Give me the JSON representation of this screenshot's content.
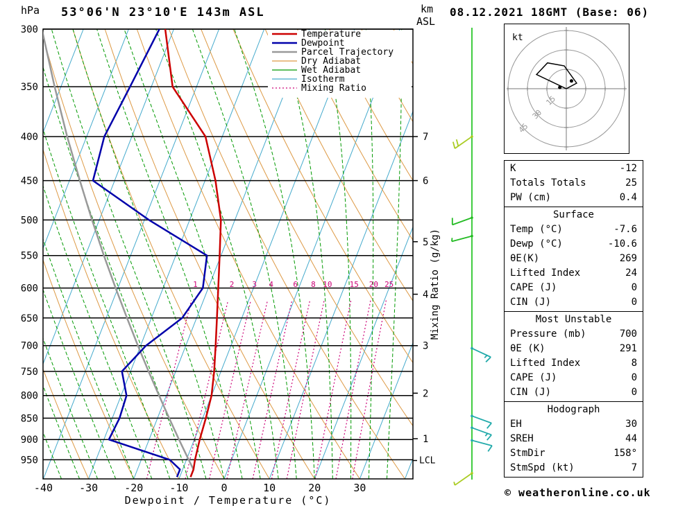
{
  "header": {
    "station_title": "53°06'N 23°10'E 143m ASL",
    "datetime_title": "08.12.2021 18GMT (Base: 06)",
    "pressure_unit": "hPa",
    "altitude_unit_top": "km",
    "altitude_unit_bottom": "ASL",
    "copyright": "© weatheronline.co.uk"
  },
  "colors": {
    "temperature": "#cc0000",
    "dewpoint": "#0000aa",
    "parcel": "#999999",
    "dry_adiabat": "#dd9944",
    "wet_adiabat": "#009900",
    "isotherm": "#44aacc",
    "mixing_ratio": "#cc0077",
    "barb_line": "#00bb00",
    "grid": "#000000"
  },
  "axes": {
    "pressure_ticks": [
      300,
      350,
      400,
      450,
      500,
      550,
      600,
      650,
      700,
      750,
      800,
      850,
      900,
      950
    ],
    "temp_ticks": [
      -40,
      -30,
      -20,
      -10,
      0,
      10,
      20,
      30
    ],
    "xlabel": "Dewpoint / Temperature (°C)",
    "right_axis_label": "Mixing Ratio (g/kg)",
    "km_ticks": [
      {
        "km": 7,
        "p": 400
      },
      {
        "km": 6,
        "p": 450
      },
      {
        "km": 5,
        "p": 530
      },
      {
        "km": 4,
        "p": 610
      },
      {
        "km": 3,
        "p": 700
      },
      {
        "km": 2,
        "p": 795
      },
      {
        "km": 1,
        "p": 898
      }
    ],
    "lcl": {
      "label": "LCL",
      "p": 952
    }
  },
  "legend": [
    {
      "label": "Temperature",
      "color": "#cc0000",
      "width": 2.5
    },
    {
      "label": "Dewpoint",
      "color": "#0000aa",
      "width": 2.5
    },
    {
      "label": "Parcel Trajectory",
      "color": "#999999",
      "width": 2.5
    },
    {
      "label": "Dry Adiabat",
      "color": "#dd9944",
      "width": 1.2
    },
    {
      "label": "Wet Adiabat",
      "color": "#009900",
      "width": 1.2
    },
    {
      "label": "Isotherm",
      "color": "#44aacc",
      "width": 1.2
    },
    {
      "label": "Mixing Ratio",
      "color": "#cc0077",
      "width": 1.2,
      "dash": "2 3"
    }
  ],
  "chart_data": {
    "type": "skewt-log-p",
    "pressure_range_hpa": [
      300,
      1000
    ],
    "temp_axis_range_c": [
      -40,
      40
    ],
    "pressure_levels": [
      995,
      975,
      950,
      900,
      850,
      800,
      750,
      700,
      650,
      600,
      550,
      500,
      450,
      400,
      350,
      300
    ],
    "temperature_profile_c": [
      -7.6,
      -7.6,
      -8.1,
      -8.8,
      -9.3,
      -10,
      -11.5,
      -13.4,
      -15.5,
      -17.8,
      -20.3,
      -23.1,
      -27.7,
      -33.7,
      -45.3,
      -51.9
    ],
    "dewpoint_profile_c": [
      -10.6,
      -10.6,
      -13.7,
      -28.9,
      -28.4,
      -28.8,
      -31.9,
      -28.8,
      -23.2,
      -21.2,
      -23.1,
      -39,
      -54.8,
      -56.1,
      -54.7,
      -53.2
    ],
    "parcel_profile_c": [
      -7.6,
      -7.6,
      -9.5,
      -13.4,
      -17.4,
      -21.6,
      -26,
      -30.6,
      -35.4,
      -40.5,
      -45.9,
      -51.6,
      -57.7,
      -64.3,
      -71.4,
      -79.2
    ],
    "mixing_ratio_g_kg": [
      1,
      2,
      3,
      4,
      6,
      8,
      10,
      15,
      20,
      25
    ],
    "dry_adiabats_c": [
      -40,
      -30,
      -20,
      -10,
      0,
      10,
      20,
      30,
      40,
      50,
      60,
      70,
      80,
      90,
      100,
      110,
      120,
      130
    ],
    "wet_adiabats_start_c": [
      -64,
      -60,
      -56,
      -52,
      -48,
      -44,
      -40,
      -36,
      -32,
      -28,
      -24,
      -20,
      -16,
      -12,
      -8,
      -4,
      0,
      4,
      8,
      12,
      16,
      20,
      24,
      28,
      32,
      36
    ]
  },
  "wind_barbs": [
    {
      "p": 400,
      "color": "#aacc22",
      "dir": 235,
      "ticks": [
        1,
        1
      ]
    },
    {
      "p": 497,
      "color": "#22bb22",
      "dir": 250,
      "ticks": [
        1
      ]
    },
    {
      "p": 522,
      "color": "#22bb22",
      "dir": 255,
      "ticks": [
        0.5
      ]
    },
    {
      "p": 705,
      "color": "#22aaaa",
      "dir": 115,
      "ticks": [
        1,
        0.5
      ]
    },
    {
      "p": 845,
      "color": "#22aaaa",
      "dir": 110,
      "ticks": [
        1
      ]
    },
    {
      "p": 872,
      "color": "#22aaaa",
      "dir": 110,
      "ticks": [
        1,
        0.5
      ]
    },
    {
      "p": 902,
      "color": "#22aaaa",
      "dir": 105,
      "ticks": [
        1
      ]
    },
    {
      "p": 985,
      "color": "#aacc22",
      "dir": 235,
      "ticks": [
        0.5
      ]
    }
  ],
  "hodograph": {
    "unit_label": "kt",
    "rings": [
      15,
      30,
      45
    ],
    "trace_kt": [
      [
        0,
        0
      ],
      [
        -23,
        11
      ],
      [
        -14.5,
        20
      ],
      [
        -1.6,
        17.7
      ],
      [
        8,
        4.3
      ],
      [
        0,
        0
      ]
    ],
    "dots_kt": [
      [
        -5,
        1
      ],
      [
        4,
        6
      ]
    ]
  },
  "panels": [
    {
      "title": null,
      "rows": [
        [
          "K",
          "-12"
        ],
        [
          "Totals Totals",
          "25"
        ],
        [
          "PW (cm)",
          "0.4"
        ]
      ]
    },
    {
      "title": "Surface",
      "rows": [
        [
          "Temp (°C)",
          "-7.6"
        ],
        [
          "Dewp (°C)",
          "-10.6"
        ],
        [
          "θE(K)",
          "269"
        ],
        [
          "Lifted Index",
          "24"
        ],
        [
          "CAPE (J)",
          "0"
        ],
        [
          "CIN (J)",
          "0"
        ]
      ]
    },
    {
      "title": "Most Unstable",
      "rows": [
        [
          "Pressure (mb)",
          "700"
        ],
        [
          "θE (K)",
          "291"
        ],
        [
          "Lifted Index",
          "8"
        ],
        [
          "CAPE (J)",
          "0"
        ],
        [
          "CIN (J)",
          "0"
        ]
      ]
    },
    {
      "title": "Hodograph",
      "rows": [
        [
          "EH",
          "30"
        ],
        [
          "SREH",
          "44"
        ],
        [
          "StmDir",
          "158°"
        ],
        [
          "StmSpd (kt)",
          "7"
        ]
      ]
    }
  ]
}
